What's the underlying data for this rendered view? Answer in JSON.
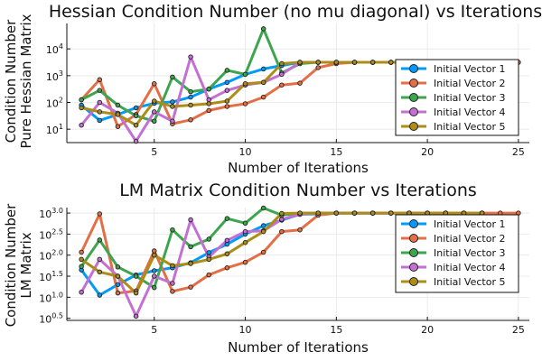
{
  "chart_data": [
    {
      "type": "line",
      "title": "Hessian Condition Number (no mu diagonal) vs Iterations",
      "xlabel": "Number of Iterations",
      "ylabel_lines": [
        "Condition Number",
        "Pure Hessian Matrix"
      ],
      "yscale": "log10",
      "xlim": [
        0.2,
        25.6
      ],
      "ylim_log10": [
        0.5,
        4.95
      ],
      "xticks": [
        5,
        10,
        15,
        20,
        25
      ],
      "yticks": [
        {
          "value": 1,
          "base": "10",
          "exp": "1"
        },
        {
          "value": 2,
          "base": "10",
          "exp": "2"
        },
        {
          "value": 3,
          "base": "10",
          "exp": "3"
        },
        {
          "value": 4,
          "base": "10",
          "exp": "4"
        }
      ],
      "grid": true,
      "legend_position": "right",
      "series": [
        {
          "name": "Initial Vector 1",
          "color": "#009AFA",
          "x": [
            1,
            2,
            3,
            4,
            5,
            6,
            7,
            8,
            9,
            10,
            11,
            12,
            13,
            14,
            15,
            16,
            17,
            18,
            19,
            20,
            21,
            22,
            23
          ],
          "y_log10": [
            1.9,
            1.33,
            1.55,
            1.8,
            1.97,
            2.02,
            2.2,
            2.5,
            2.75,
            3.05,
            3.25,
            3.38,
            3.5,
            3.5,
            3.5,
            3.5,
            3.5,
            3.5,
            3.5,
            3.5,
            3.5,
            3.5,
            3.5
          ]
        },
        {
          "name": "Initial Vector 2",
          "color": "#E36F47",
          "x": [
            1,
            2,
            3,
            4,
            5,
            6,
            7,
            8,
            9,
            10,
            11,
            12,
            13,
            14,
            15,
            16,
            17,
            18,
            19,
            20,
            21,
            22,
            23,
            24,
            25
          ],
          "y_log10": [
            2.1,
            2.85,
            1.1,
            1.55,
            2.7,
            1.2,
            1.35,
            1.7,
            1.85,
            1.95,
            2.2,
            2.65,
            2.72,
            3.3,
            3.45,
            3.5,
            3.5,
            3.5,
            3.5,
            3.5,
            3.5,
            3.5,
            3.5,
            3.5,
            3.5
          ]
        },
        {
          "name": "Initial Vector 3",
          "color": "#3EA44E",
          "x": [
            1,
            2,
            3,
            4,
            5,
            6,
            7,
            8,
            9,
            10,
            11,
            12,
            13,
            14,
            15,
            16,
            17,
            18,
            19,
            20,
            21,
            22,
            23
          ],
          "y_log10": [
            2.1,
            2.45,
            1.9,
            1.5,
            1.3,
            2.95,
            2.4,
            2.5,
            3.2,
            3.05,
            4.75,
            3.1,
            3.45,
            3.5,
            3.5,
            3.5,
            3.5,
            3.5,
            3.5,
            3.5,
            3.5,
            3.5,
            3.5
          ]
        },
        {
          "name": "Initial Vector 4",
          "color": "#C271D2",
          "x": [
            1,
            2,
            3,
            4,
            5,
            6,
            7,
            8,
            9,
            10,
            11,
            12,
            13,
            14,
            15,
            16,
            17,
            18,
            19,
            20,
            21,
            22,
            23
          ],
          "y_log10": [
            1.15,
            2.0,
            1.6,
            0.55,
            1.65,
            1.3,
            3.7,
            2.1,
            2.45,
            2.65,
            2.75,
            3.05,
            3.5,
            3.5,
            3.5,
            3.5,
            3.5,
            3.5,
            3.5,
            3.5,
            3.5,
            3.5,
            3.5
          ]
        },
        {
          "name": "Initial Vector 5",
          "color": "#AC8D18",
          "x": [
            1,
            2,
            3,
            4,
            5,
            6,
            7,
            8,
            9,
            10,
            11,
            12,
            13,
            14,
            15,
            16,
            17,
            18,
            19,
            20,
            21,
            22,
            23
          ],
          "y_log10": [
            1.8,
            1.65,
            1.55,
            1.15,
            2.05,
            1.85,
            1.9,
            1.95,
            2.05,
            2.7,
            2.75,
            3.45,
            3.5,
            3.5,
            3.5,
            3.5,
            3.5,
            3.5,
            3.5,
            3.5,
            3.5,
            3.5,
            3.5
          ]
        }
      ]
    },
    {
      "type": "line",
      "title": "LM Matrix Condition Number vs Iterations",
      "xlabel": "Number of Iterations",
      "ylabel_lines": [
        "Condition Number",
        "LM Matrix"
      ],
      "yscale": "log10",
      "xlim": [
        0.2,
        25.6
      ],
      "ylim_log10": [
        0.45,
        3.13
      ],
      "xticks": [
        5,
        10,
        15,
        20,
        25
      ],
      "yticks": [
        {
          "value": 0.5,
          "base": "10",
          "exp": "0.5"
        },
        {
          "value": 1.0,
          "base": "10",
          "exp": "1.0"
        },
        {
          "value": 1.5,
          "base": "10",
          "exp": "1.5"
        },
        {
          "value": 2.0,
          "base": "10",
          "exp": "2.0"
        },
        {
          "value": 2.5,
          "base": "10",
          "exp": "2.5"
        },
        {
          "value": 3.0,
          "base": "10",
          "exp": "3.0"
        }
      ],
      "grid": true,
      "legend_position": "right",
      "series": [
        {
          "name": "Initial Vector 1",
          "color": "#009AFA",
          "x": [
            1,
            2,
            3,
            4,
            5,
            6,
            7,
            8,
            9,
            10,
            11,
            12,
            13,
            14,
            15,
            16,
            17,
            18,
            19,
            20,
            21,
            22,
            23
          ],
          "y_log10": [
            1.65,
            1.05,
            1.3,
            1.53,
            1.63,
            1.7,
            1.82,
            2.06,
            2.26,
            2.5,
            2.7,
            2.83,
            2.97,
            2.98,
            3.0,
            3.0,
            3.0,
            3.0,
            3.0,
            3.0,
            3.0,
            3.0,
            3.0
          ]
        },
        {
          "name": "Initial Vector 2",
          "color": "#E36F47",
          "x": [
            1,
            2,
            3,
            4,
            5,
            6,
            7,
            8,
            9,
            10,
            11,
            12,
            13,
            14,
            15,
            16,
            17,
            18,
            19,
            20,
            21,
            22,
            23,
            24,
            25
          ],
          "y_log10": [
            2.07,
            2.98,
            1.1,
            1.15,
            2.1,
            1.14,
            1.24,
            1.53,
            1.7,
            1.83,
            2.07,
            2.56,
            2.6,
            2.95,
            3.0,
            3.0,
            3.0,
            3.0,
            3.0,
            3.0,
            3.0,
            3.0,
            3.0,
            3.0,
            3.0
          ]
        },
        {
          "name": "Initial Vector 3",
          "color": "#3EA44E",
          "x": [
            1,
            2,
            3,
            4,
            5,
            6,
            7,
            8,
            9,
            10,
            11,
            12,
            13,
            14,
            15,
            16,
            17,
            18,
            19,
            20,
            21,
            22,
            23
          ],
          "y_log10": [
            1.73,
            2.36,
            1.72,
            1.5,
            1.23,
            2.6,
            2.2,
            2.38,
            2.87,
            2.76,
            3.12,
            2.95,
            3.0,
            3.0,
            3.0,
            3.0,
            3.0,
            3.0,
            3.0,
            3.0,
            3.0,
            3.0,
            3.0
          ]
        },
        {
          "name": "Initial Vector 4",
          "color": "#C271D2",
          "x": [
            1,
            2,
            3,
            4,
            5,
            6,
            7,
            8,
            9,
            10,
            11,
            12,
            13,
            14,
            15,
            16,
            17,
            18,
            19,
            20,
            21,
            22,
            23
          ],
          "y_log10": [
            1.12,
            1.9,
            1.5,
            0.55,
            1.5,
            1.33,
            2.84,
            1.96,
            2.35,
            2.56,
            2.58,
            2.85,
            2.97,
            3.0,
            3.0,
            3.0,
            3.0,
            3.0,
            3.0,
            3.0,
            3.0,
            3.0,
            3.0
          ]
        },
        {
          "name": "Initial Vector 5",
          "color": "#AC8D18",
          "x": [
            1,
            2,
            3,
            4,
            5,
            6,
            7,
            8,
            9,
            10,
            11,
            12,
            13,
            14,
            15,
            16,
            17,
            18,
            19,
            20,
            21,
            22,
            23
          ],
          "y_log10": [
            1.9,
            1.6,
            1.5,
            1.1,
            2.0,
            1.75,
            1.8,
            1.9,
            2.03,
            2.3,
            2.56,
            2.99,
            3.0,
            3.0,
            3.0,
            3.0,
            3.0,
            3.0,
            3.0,
            3.0,
            3.0,
            3.0,
            3.0
          ]
        }
      ]
    }
  ]
}
